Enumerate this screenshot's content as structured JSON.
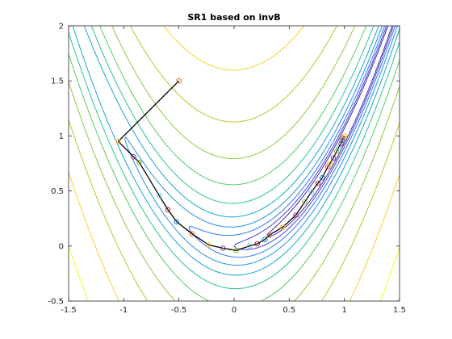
{
  "chart_data": {
    "type": "line",
    "title": "SR1 based on invB",
    "xlabel": "",
    "ylabel": "",
    "xlim": [
      -1.5,
      1.5
    ],
    "ylim": [
      -0.5,
      2
    ],
    "xticks": [
      "-1.5",
      "-1",
      "-0.5",
      "0",
      "0.5",
      "1",
      "1.5"
    ],
    "yticks": [
      "-0.5",
      "0",
      "0.5",
      "1",
      "1.5",
      "2"
    ],
    "grid": false,
    "legend": "none",
    "contour_function": "rosenbrock",
    "contour_levels": [
      0.5,
      1,
      2,
      4,
      8,
      16,
      32,
      64,
      128,
      256,
      512
    ],
    "contour_colormap": [
      "#3e26a8",
      "#4740d8",
      "#4259ec",
      "#2d75f5",
      "#2190e8",
      "#14a6d3",
      "#13b6b4",
      "#26c292",
      "#55c866",
      "#8ec941",
      "#c4c02c",
      "#f3b93a",
      "#f9d229",
      "#f9fb15"
    ],
    "iterate_path": {
      "color": "#000000",
      "x": [
        -0.5,
        -1.05,
        -0.91,
        -0.86,
        -0.68,
        -0.6,
        -0.52,
        -0.38,
        -0.23,
        -0.1,
        0.02,
        0.14,
        0.21,
        0.28,
        0.32,
        0.44,
        0.56,
        0.64,
        0.7,
        0.76,
        0.8,
        0.85,
        0.87,
        0.9,
        0.93,
        0.95,
        0.97,
        0.98,
        0.99,
        1.0
      ],
      "y": [
        1.5,
        0.95,
        0.81,
        0.76,
        0.46,
        0.33,
        0.22,
        0.11,
        0.01,
        -0.02,
        -0.04,
        0.0,
        0.02,
        0.06,
        0.1,
        0.17,
        0.28,
        0.4,
        0.49,
        0.57,
        0.62,
        0.72,
        0.75,
        0.8,
        0.86,
        0.9,
        0.93,
        0.96,
        0.98,
        1.0
      ]
    },
    "marker_colors": [
      "#d95319",
      "#edb120",
      "#7e2f8e",
      "#77ac30",
      "#4dbeee",
      "#a2142f",
      "#0072bd"
    ]
  }
}
